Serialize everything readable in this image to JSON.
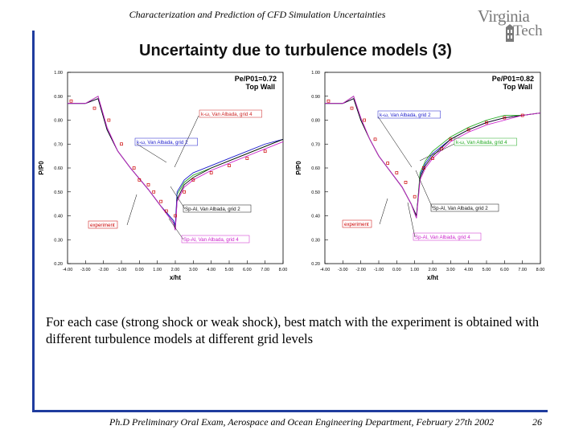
{
  "header": {
    "title": "Characterization and Prediction of CFD Simulation Uncertainties"
  },
  "logo": {
    "line1": "Virginia",
    "line2": "Tech"
  },
  "slide": {
    "title": "Uncertainty due to turbulence models (3)"
  },
  "body": {
    "text": "For each case (strong shock or weak shock), best match with the experiment is obtained with different turbulence models at different grid levels"
  },
  "footer": {
    "text": "Ph.D Preliminary Oral Exam, Aerospace and Ocean Engineering Department, February 27th 2002",
    "page": "26"
  },
  "colors": {
    "accent": "#1f3c9e",
    "experiment": "#cc0000",
    "kw_grid2": "#1a1acc",
    "kw_grid4": "#22aa22",
    "sa_grid2": "#111111",
    "sa_grid4": "#cc22cc"
  },
  "chart_data": [
    {
      "type": "line",
      "case_label": "Pe/P01=0.72",
      "wall_label": "Top Wall",
      "xlabel": "x/ht",
      "ylabel": "P/P0",
      "xlim": [
        -4.0,
        8.0
      ],
      "ylim": [
        0.2,
        1.0
      ],
      "xticks": [
        "-4.00",
        "-3.00",
        "-2.00",
        "-1.00",
        "0.00",
        "1.00",
        "2.00",
        "3.00",
        "4.00",
        "5.00",
        "6.00",
        "7.00",
        "8.00"
      ],
      "yticks": [
        "0.20",
        "0.30",
        "0.40",
        "0.50",
        "0.60",
        "0.70",
        "0.80",
        "0.90",
        "1.00"
      ],
      "series": [
        {
          "name": "k-ω, Van Albada, grid 4",
          "color": "#22aa22",
          "x": [
            -4.0,
            -3.0,
            -2.3,
            -1.8,
            -1.2,
            -0.5,
            0.5,
            1.2,
            1.9,
            2.0,
            2.1,
            2.5,
            3.0,
            4.0,
            5.0,
            6.0,
            7.0,
            8.0
          ],
          "y": [
            0.87,
            0.87,
            0.9,
            0.76,
            0.67,
            0.6,
            0.51,
            0.44,
            0.38,
            0.35,
            0.49,
            0.54,
            0.57,
            0.6,
            0.63,
            0.66,
            0.69,
            0.72
          ]
        },
        {
          "name": "k-ω, Van Albada, grid 2",
          "color": "#1a1acc",
          "x": [
            -4.0,
            -3.0,
            -2.3,
            -1.8,
            -1.2,
            -0.5,
            0.5,
            1.2,
            1.9,
            2.0,
            2.1,
            2.5,
            3.0,
            4.0,
            5.0,
            6.0,
            7.0,
            8.0
          ],
          "y": [
            0.87,
            0.87,
            0.89,
            0.76,
            0.67,
            0.6,
            0.51,
            0.44,
            0.38,
            0.36,
            0.5,
            0.55,
            0.58,
            0.61,
            0.64,
            0.67,
            0.7,
            0.72
          ]
        },
        {
          "name": "Sp-Al, Van Albada, grid 2",
          "color": "#111111",
          "x": [
            -4.0,
            -3.0,
            -2.3,
            -1.8,
            -1.2,
            -0.5,
            0.5,
            1.2,
            1.9,
            2.0,
            2.1,
            2.5,
            3.0,
            4.0,
            5.0,
            6.0,
            7.0,
            8.0
          ],
          "y": [
            0.87,
            0.87,
            0.89,
            0.76,
            0.67,
            0.6,
            0.51,
            0.44,
            0.37,
            0.34,
            0.47,
            0.53,
            0.56,
            0.6,
            0.63,
            0.66,
            0.69,
            0.72
          ]
        },
        {
          "name": "Sp-Al, Van Albada, grid 4",
          "color": "#cc22cc",
          "x": [
            -4.0,
            -3.0,
            -2.3,
            -1.8,
            -1.2,
            -0.5,
            0.5,
            1.2,
            1.9,
            2.0,
            2.1,
            2.5,
            3.0,
            4.0,
            5.0,
            6.0,
            7.0,
            8.0
          ],
          "y": [
            0.87,
            0.87,
            0.9,
            0.77,
            0.67,
            0.6,
            0.51,
            0.44,
            0.37,
            0.34,
            0.46,
            0.52,
            0.55,
            0.59,
            0.62,
            0.65,
            0.68,
            0.71
          ]
        },
        {
          "name": "experiment",
          "color": "#cc0000",
          "marker": true,
          "x": [
            -3.8,
            -2.5,
            -1.7,
            -1.0,
            -0.3,
            0.0,
            0.5,
            0.8,
            1.2,
            1.5,
            2.0,
            2.5,
            3.0,
            4.0,
            5.0,
            6.0,
            7.0
          ],
          "y": [
            0.88,
            0.85,
            0.8,
            0.7,
            0.6,
            0.55,
            0.53,
            0.5,
            0.46,
            0.42,
            0.4,
            0.5,
            0.55,
            0.58,
            0.61,
            0.64,
            0.67
          ]
        }
      ],
      "annotations": [
        {
          "text": "k-ω, Van Albada, grid 4",
          "color": "#cc2222"
        },
        {
          "text": "k-ω, Van Albada, grid 2",
          "color": "#1a1acc"
        },
        {
          "text": "Sp-Al, Van Albada, grid 2",
          "color": "#111111"
        },
        {
          "text": "experiment",
          "color": "#cc0000"
        },
        {
          "text": "Sp-Al, Van Albada, grid 4",
          "color": "#cc22cc"
        }
      ]
    },
    {
      "type": "line",
      "case_label": "Pe/P01=0.82",
      "wall_label": "Top Wall",
      "xlabel": "x/ht",
      "ylabel": "P/P0",
      "xlim": [
        -4.0,
        8.0
      ],
      "ylim": [
        0.2,
        1.0
      ],
      "xticks": [
        "-4.00",
        "-3.00",
        "-2.00",
        "-1.00",
        "0.00",
        "1.00",
        "2.00",
        "3.00",
        "4.00",
        "5.00",
        "6.00",
        "7.00",
        "8.00"
      ],
      "yticks": [
        "0.20",
        "0.30",
        "0.40",
        "0.50",
        "0.60",
        "0.70",
        "0.80",
        "0.90",
        "1.00"
      ],
      "series": [
        {
          "name": "k-ω, Van Albada, grid 2",
          "color": "#1a1acc",
          "x": [
            -4.0,
            -3.0,
            -2.4,
            -2.0,
            -1.5,
            -1.0,
            -0.5,
            0.3,
            0.8,
            1.1,
            1.3,
            1.6,
            2.0,
            3.0,
            4.0,
            5.0,
            6.0,
            7.0,
            8.0
          ],
          "y": [
            0.87,
            0.87,
            0.89,
            0.8,
            0.72,
            0.65,
            0.6,
            0.52,
            0.45,
            0.4,
            0.57,
            0.62,
            0.66,
            0.72,
            0.76,
            0.79,
            0.81,
            0.82,
            0.83
          ]
        },
        {
          "name": "k-ω, Van Albada, grid 4",
          "color": "#22aa22",
          "x": [
            -4.0,
            -3.0,
            -2.4,
            -2.0,
            -1.5,
            -1.0,
            -0.5,
            0.3,
            0.8,
            1.1,
            1.3,
            1.6,
            2.0,
            3.0,
            4.0,
            5.0,
            6.0,
            7.0,
            8.0
          ],
          "y": [
            0.87,
            0.87,
            0.9,
            0.8,
            0.72,
            0.65,
            0.6,
            0.52,
            0.45,
            0.39,
            0.58,
            0.63,
            0.67,
            0.73,
            0.77,
            0.8,
            0.82,
            0.82,
            0.83
          ]
        },
        {
          "name": "Sp-Al, Van Albada, grid 2",
          "color": "#111111",
          "x": [
            -4.0,
            -3.0,
            -2.4,
            -2.0,
            -1.5,
            -1.0,
            -0.5,
            0.3,
            0.8,
            1.1,
            1.3,
            1.6,
            2.0,
            3.0,
            4.0,
            5.0,
            6.0,
            7.0,
            8.0
          ],
          "y": [
            0.87,
            0.87,
            0.89,
            0.8,
            0.72,
            0.65,
            0.6,
            0.52,
            0.45,
            0.4,
            0.56,
            0.61,
            0.65,
            0.72,
            0.76,
            0.79,
            0.81,
            0.82,
            0.83
          ]
        },
        {
          "name": "Sp-Al, Van Albada, grid 4",
          "color": "#cc22cc",
          "x": [
            -4.0,
            -3.0,
            -2.4,
            -2.0,
            -1.5,
            -1.0,
            -0.5,
            0.3,
            0.8,
            1.1,
            1.3,
            1.6,
            2.0,
            3.0,
            4.0,
            5.0,
            6.0,
            7.0,
            8.0
          ],
          "y": [
            0.87,
            0.87,
            0.9,
            0.81,
            0.72,
            0.65,
            0.6,
            0.52,
            0.45,
            0.39,
            0.55,
            0.6,
            0.64,
            0.71,
            0.75,
            0.78,
            0.8,
            0.82,
            0.83
          ]
        },
        {
          "name": "experiment",
          "color": "#cc0000",
          "marker": true,
          "x": [
            -3.8,
            -2.5,
            -1.8,
            -1.2,
            -0.5,
            0.0,
            0.5,
            1.0,
            1.5,
            2.0,
            2.5,
            3.0,
            4.0,
            5.0,
            6.0,
            7.0
          ],
          "y": [
            0.88,
            0.85,
            0.8,
            0.72,
            0.62,
            0.58,
            0.54,
            0.48,
            0.6,
            0.64,
            0.68,
            0.72,
            0.76,
            0.79,
            0.81,
            0.82
          ]
        }
      ],
      "annotations": [
        {
          "text": "k-ω, Van Albada, grid 2",
          "color": "#1a1acc"
        },
        {
          "text": "k-ω, Van Albada, grid 4",
          "color": "#22aa22"
        },
        {
          "text": "Sp-Al, Van Albada, grid 2",
          "color": "#111111"
        },
        {
          "text": "experiment",
          "color": "#cc0000"
        },
        {
          "text": "Sp-Al, Van Albada, grid 4",
          "color": "#cc22cc"
        }
      ]
    }
  ]
}
